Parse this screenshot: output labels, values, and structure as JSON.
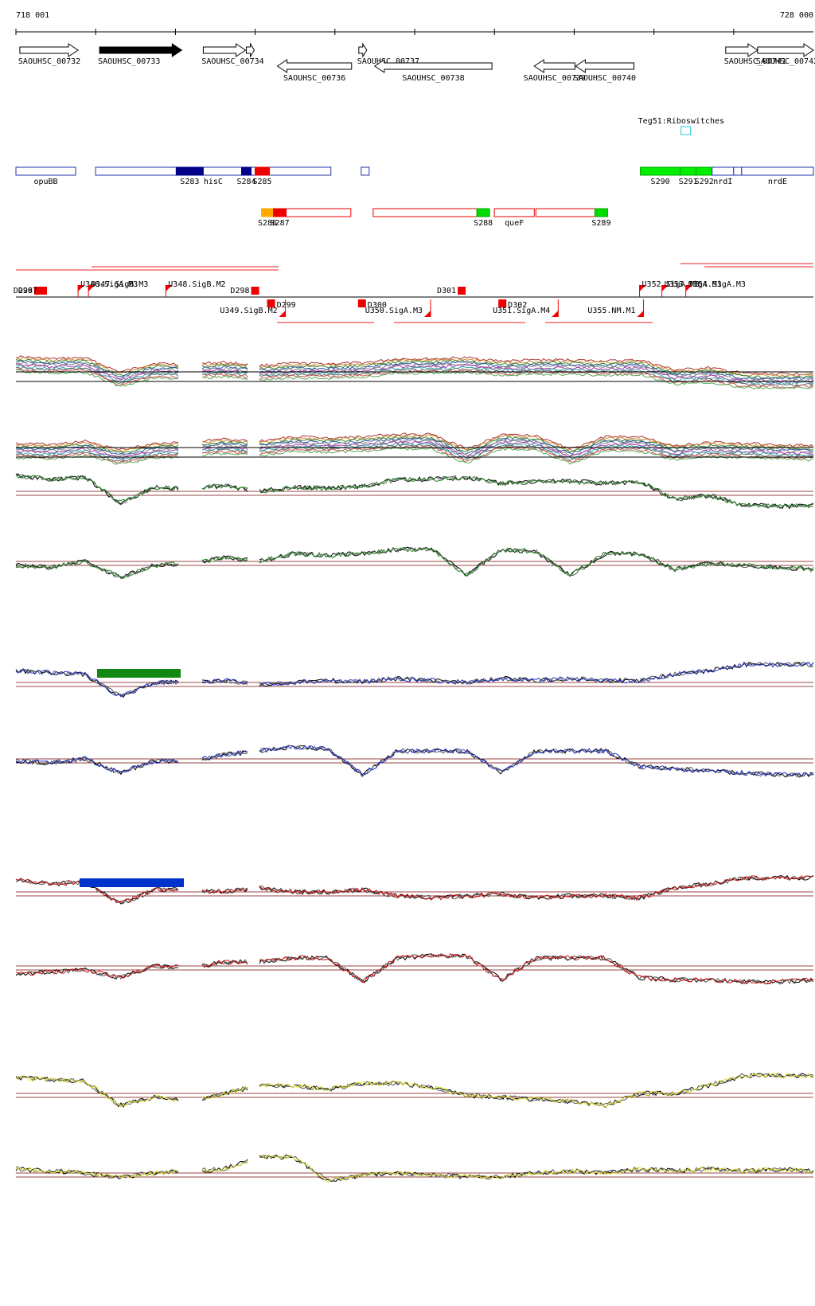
{
  "coordinates": {
    "start_label": "718 001",
    "end_label": "728 000",
    "start": 718001,
    "end": 728000
  },
  "genes": [
    {
      "name": "SAOUHSC_00732",
      "start": 718050,
      "end": 718780,
      "strand": "+",
      "filled": false,
      "row": 0
    },
    {
      "name": "SAOUHSC_00733",
      "start": 719050,
      "end": 720080,
      "strand": "+",
      "filled": true,
      "row": 0
    },
    {
      "name": "SAOUHSC_00734",
      "start": 720350,
      "end": 720880,
      "strand": "+",
      "filled": false,
      "row": 0
    },
    {
      "name": "",
      "start": 720890,
      "end": 720990,
      "strand": "+",
      "filled": false,
      "row": 0
    },
    {
      "name": "SAOUHSC_00736",
      "start": 721280,
      "end": 722210,
      "strand": "-",
      "filled": false,
      "row": 1
    },
    {
      "name": "SAOUHSC_00737",
      "start": 722300,
      "end": 722400,
      "strand": "+",
      "filled": false,
      "row": 0
    },
    {
      "name": "SAOUHSC_00738",
      "start": 722500,
      "end": 723970,
      "strand": "-",
      "filled": false,
      "row": 1
    },
    {
      "name": "SAOUHSC_00739",
      "start": 724500,
      "end": 725010,
      "strand": "-",
      "filled": false,
      "row": 1
    },
    {
      "name": "SAOUHSC_00740",
      "start": 725020,
      "end": 725750,
      "strand": "-",
      "filled": false,
      "row": 1
    },
    {
      "name": "SAOUHSC_00741",
      "start": 726900,
      "end": 727300,
      "strand": "+",
      "filled": false,
      "row": 0
    },
    {
      "name": "SAOUHSC_00742",
      "start": 727300,
      "end": 728000,
      "strand": "+",
      "filled": false,
      "row": 0
    }
  ],
  "riboswitch": {
    "label": "Teg51:Riboswitches",
    "pos": 726400
  },
  "segments_row1": [
    {
      "label": "opuBB",
      "start": 718001,
      "end": 718750,
      "color": "#ffffff",
      "border": "#2233aa"
    },
    {
      "label": "hisC",
      "start": 719000,
      "end": 721950,
      "color": "#ffffff",
      "border": "#2233aa"
    },
    {
      "label": "S283",
      "start": 720010,
      "end": 720350,
      "color": "#000088",
      "border": "#000088"
    },
    {
      "label": "S284",
      "start": 720830,
      "end": 720950,
      "color": "#000088",
      "border": "#000088"
    },
    {
      "label": "S285",
      "start": 721000,
      "end": 721180,
      "color": "#ee0000",
      "border": "#ee0000"
    },
    {
      "label": "",
      "start": 722330,
      "end": 722430,
      "color": "#ffffff",
      "border": "#2233aa"
    },
    {
      "label": "S290",
      "start": 725830,
      "end": 726330,
      "color": "#00ee00",
      "border": "#00aa00"
    },
    {
      "label": "S291",
      "start": 726330,
      "end": 726530,
      "color": "#00ee00",
      "border": "#00aa00"
    },
    {
      "label": "S292",
      "start": 726530,
      "end": 726730,
      "color": "#00ee00",
      "border": "#00aa00"
    },
    {
      "label": "nrdI",
      "start": 726730,
      "end": 727000,
      "color": "#ffffff",
      "border": "#2233aa"
    },
    {
      "label": "",
      "start": 727000,
      "end": 727100,
      "color": "#ffffff",
      "border": "#2233aa"
    },
    {
      "label": "nrdE",
      "start": 727100,
      "end": 728000,
      "color": "#ffffff",
      "border": "#2233aa"
    }
  ],
  "segments_row2": [
    {
      "label": "S286",
      "start": 721080,
      "end": 721230,
      "color": "#ffaa00",
      "border": "#ffaa00"
    },
    {
      "label": "S287",
      "start": 721230,
      "end": 721390,
      "color": "#ee0000",
      "border": "#ee0000"
    },
    {
      "label": "",
      "start": 721390,
      "end": 722200,
      "color": "#ffffff",
      "border": "#ee0000"
    },
    {
      "label": "",
      "start": 722480,
      "end": 723780,
      "color": "#ffffff",
      "border": "#ee0000"
    },
    {
      "label": "S288",
      "start": 723780,
      "end": 723940,
      "color": "#00dd00",
      "border": "#00aa00"
    },
    {
      "label": "queF",
      "start": 724000,
      "end": 724500,
      "color": "#ffffff",
      "border": "#ee0000"
    },
    {
      "label": "",
      "start": 724520,
      "end": 725260,
      "color": "#ffffff",
      "border": "#ee0000"
    },
    {
      "label": "S289",
      "start": 725260,
      "end": 725420,
      "color": "#00dd00",
      "border": "#00aa00"
    }
  ],
  "features_top": [
    {
      "label": "D296",
      "pos": 718280
    },
    {
      "label": "D297",
      "pos": 718340
    },
    {
      "label": "U346.SigA.M3",
      "pos": 718780
    },
    {
      "label": "U347.SigB.M3",
      "pos": 718910
    },
    {
      "label": "U348.SigB.M2",
      "pos": 719880
    },
    {
      "label": "D298",
      "pos": 721000
    },
    {
      "label": "D301",
      "pos": 723590
    },
    {
      "label": "U352.SigA.M3",
      "pos": 725820
    },
    {
      "label": "U353.SigA.M3",
      "pos": 726100
    },
    {
      "label": "U354.SigA.M3",
      "pos": 726400
    }
  ],
  "features_bottom": [
    {
      "label": "D299",
      "pos": 721200
    },
    {
      "label": "U349.SigB.M2",
      "pos": 721380
    },
    {
      "label": "D300",
      "pos": 722340
    },
    {
      "label": "U350.SigA.M3",
      "pos": 723200
    },
    {
      "label": "D302",
      "pos": 724100
    },
    {
      "label": "U351.SigA.M4",
      "pos": 724800
    },
    {
      "label": "U355.NM.M1",
      "pos": 725870
    }
  ],
  "tracks": {
    "gap_ranges": [
      [
        720060,
        720320
      ],
      [
        720920,
        721040
      ]
    ],
    "rows": [
      {
        "color": "#228822",
        "ref": [
          0.1,
          0.2,
          0.15,
          0.8,
          0.4,
          0.45,
          0.35,
          0.5,
          0.4,
          0.42,
          0.38,
          0.2,
          0.2,
          0.15,
          0.3,
          0.25,
          0.25,
          0.3,
          0.25,
          0.7,
          0.6,
          0.85,
          0.88,
          0.85
        ]
      },
      {
        "color": "#228822",
        "ref": [
          0.6,
          0.65,
          0.5,
          0.9,
          0.6,
          0.55,
          0.4,
          0.5,
          0.3,
          0.35,
          0.3,
          0.2,
          0.2,
          0.85,
          0.2,
          0.25,
          0.85,
          0.3,
          0.3,
          0.7,
          0.55,
          0.6,
          0.65,
          0.7
        ]
      },
      {
        "color": "#2233cc",
        "ref": [
          0.2,
          0.25,
          0.3,
          0.85,
          0.5,
          0.5,
          0.45,
          0.55,
          0.5,
          0.45,
          0.48,
          0.4,
          0.45,
          0.5,
          0.4,
          0.45,
          0.4,
          0.45,
          0.45,
          0.3,
          0.2,
          0.05,
          0.05,
          0.05
        ]
      },
      {
        "color": "#2233cc",
        "ref": [
          0.55,
          0.6,
          0.5,
          0.85,
          0.55,
          0.55,
          0.4,
          0.3,
          0.2,
          0.25,
          0.9,
          0.3,
          0.3,
          0.3,
          0.85,
          0.3,
          0.3,
          0.3,
          0.7,
          0.75,
          0.8,
          0.85,
          0.9,
          0.9
        ]
      },
      {
        "color": "#cc1111",
        "ref": [
          0.2,
          0.3,
          0.25,
          0.8,
          0.45,
          0.45,
          0.5,
          0.4,
          0.5,
          0.5,
          0.45,
          0.6,
          0.65,
          0.6,
          0.55,
          0.65,
          0.6,
          0.6,
          0.65,
          0.4,
          0.3,
          0.15,
          0.15,
          0.15
        ]
      },
      {
        "color": "#cc1111",
        "ref": [
          0.7,
          0.65,
          0.6,
          0.8,
          0.5,
          0.55,
          0.4,
          0.4,
          0.3,
          0.3,
          0.9,
          0.3,
          0.25,
          0.25,
          0.85,
          0.3,
          0.3,
          0.3,
          0.8,
          0.85,
          0.85,
          0.9,
          0.9,
          0.85
        ]
      },
      {
        "color": "#dddd22",
        "ref": [
          0.1,
          0.15,
          0.2,
          0.8,
          0.6,
          0.7,
          0.5,
          0.3,
          0.3,
          0.4,
          0.25,
          0.25,
          0.35,
          0.55,
          0.6,
          0.65,
          0.7,
          0.8,
          0.5,
          0.5,
          0.3,
          0.05,
          0.05,
          0.05
        ]
      },
      {
        "color": "#dddd22",
        "ref": [
          0.4,
          0.45,
          0.5,
          0.6,
          0.5,
          0.45,
          0.4,
          0.1,
          0.1,
          0.7,
          0.55,
          0.5,
          0.55,
          0.6,
          0.6,
          0.5,
          0.45,
          0.5,
          0.4,
          0.45,
          0.4,
          0.45,
          0.4,
          0.45
        ]
      }
    ]
  }
}
